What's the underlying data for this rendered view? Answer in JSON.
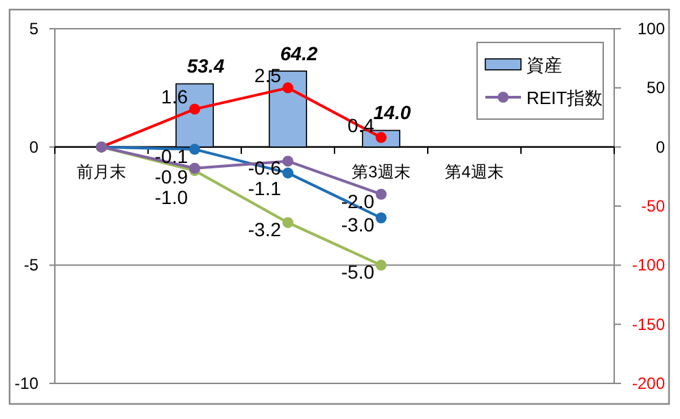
{
  "chart_data": {
    "type": "line",
    "categories": [
      "前月末",
      null,
      null,
      "第3週末",
      "第4週末",
      null
    ],
    "series": [
      {
        "name": "資産",
        "type": "bar",
        "axis": "y2",
        "color": "#8eb4e3",
        "values": [
          null,
          53.4,
          64.2,
          14.0,
          null,
          null
        ],
        "value_labels": [
          null,
          "53.4",
          "64.2",
          "14.0",
          null,
          null
        ]
      },
      {
        "color": "#ff0000",
        "values": [
          0,
          1.6,
          2.5,
          0.4,
          null,
          null
        ],
        "value_labels": [
          null,
          "1.6",
          "2.5",
          "0.4",
          null,
          null
        ]
      },
      {
        "color": "#1f6fb5",
        "values": [
          0,
          -0.1,
          -1.1,
          -3.0,
          null,
          null
        ],
        "value_labels": [
          null,
          "-0.1",
          "-1.1",
          "-3.0",
          null,
          null
        ]
      },
      {
        "color": "#9bbb59",
        "values": [
          0,
          -1.0,
          -3.2,
          -5.0,
          null,
          null
        ],
        "value_labels": [
          null,
          "-1.0",
          "-3.2",
          "-5.0",
          null,
          null
        ]
      },
      {
        "name": "REIT指数",
        "color": "#8064a2",
        "values": [
          0,
          -0.9,
          -0.6,
          -2.0,
          null,
          null
        ],
        "value_labels": [
          null,
          "-0.9",
          "-0.6",
          "-2.0",
          null,
          null
        ]
      }
    ],
    "ylim": [
      -10,
      5
    ],
    "yticks": [
      -10,
      -5,
      0,
      5
    ],
    "y2lim": [
      -200,
      100
    ],
    "y2ticks": [
      -200,
      -150,
      -100,
      -50,
      0,
      50,
      100
    ],
    "grid": "y",
    "legend": "top right",
    "marker": "circle",
    "line_style": "solid"
  }
}
